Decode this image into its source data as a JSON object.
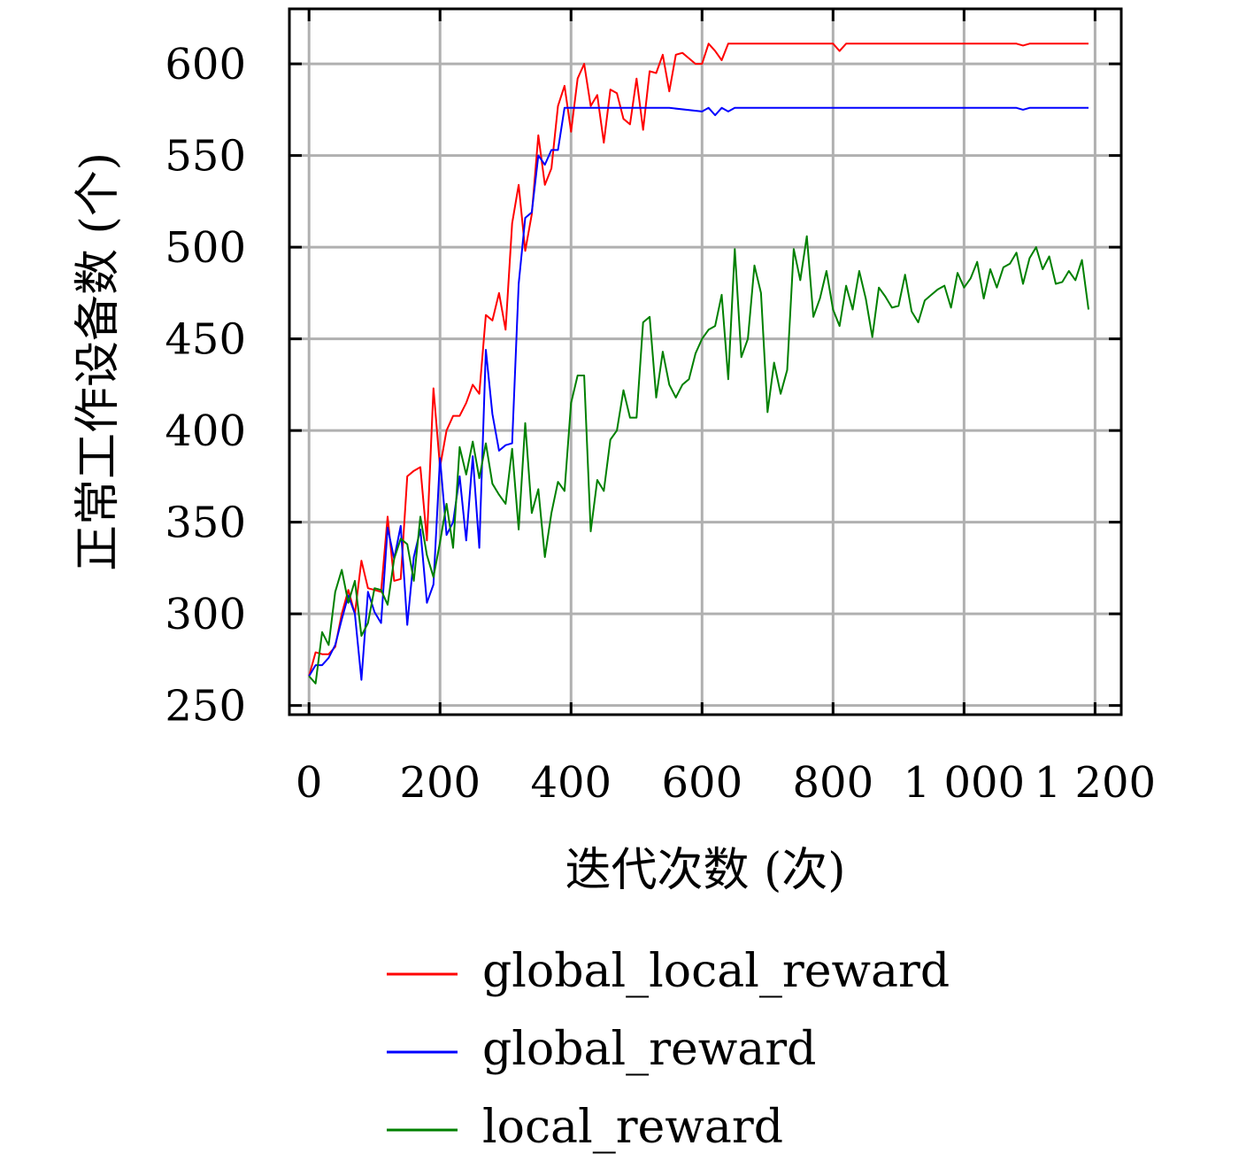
{
  "chart_data": {
    "type": "line",
    "title": "",
    "xlabel": "迭代次数 (次)",
    "ylabel": "正常工作设备数 (个)",
    "xlim": [
      -30,
      1240
    ],
    "ylim": [
      245,
      630
    ],
    "grid": true,
    "legend_position": "bottom",
    "x_ticks": [
      0,
      200,
      400,
      600,
      800,
      1000,
      1200
    ],
    "x_tick_labels": [
      "0",
      "200",
      "400",
      "600",
      "800",
      "1 000",
      "1 200"
    ],
    "y_ticks": [
      250,
      300,
      350,
      400,
      450,
      500,
      550,
      600
    ],
    "y_tick_labels": [
      "250",
      "300",
      "350",
      "400",
      "450",
      "500",
      "550",
      "600"
    ],
    "series": [
      {
        "name": "global_local_reward",
        "color": "#ff0000",
        "x": [
          0,
          10,
          20,
          30,
          40,
          50,
          60,
          70,
          80,
          90,
          100,
          110,
          120,
          130,
          140,
          150,
          160,
          170,
          180,
          190,
          200,
          210,
          220,
          230,
          240,
          250,
          260,
          270,
          280,
          290,
          300,
          310,
          320,
          330,
          340,
          350,
          360,
          370,
          380,
          390,
          400,
          410,
          420,
          430,
          440,
          450,
          460,
          470,
          480,
          490,
          500,
          510,
          520,
          530,
          540,
          550,
          560,
          570,
          580,
          590,
          600,
          610,
          620,
          630,
          640,
          650,
          700,
          750,
          800,
          810,
          820,
          850,
          900,
          950,
          1000,
          1050,
          1080,
          1090,
          1100,
          1150,
          1190
        ],
        "y": [
          266,
          279,
          278,
          278,
          282,
          300,
          313,
          300,
          329,
          314,
          313,
          312,
          353,
          318,
          319,
          375,
          378,
          380,
          340,
          423,
          380,
          400,
          408,
          408,
          415,
          425,
          420,
          463,
          460,
          475,
          455,
          513,
          534,
          498,
          518,
          561,
          534,
          543,
          577,
          588,
          563,
          592,
          600,
          577,
          583,
          557,
          586,
          584,
          570,
          567,
          592,
          564,
          596,
          595,
          605,
          585,
          605,
          606,
          603,
          600,
          600,
          611,
          607,
          602,
          611,
          611,
          611,
          611,
          611,
          607,
          611,
          611,
          611,
          611,
          611,
          611,
          611,
          610,
          611,
          611,
          611
        ]
      },
      {
        "name": "global_reward",
        "color": "#0000ff",
        "x": [
          0,
          10,
          20,
          30,
          40,
          50,
          60,
          70,
          80,
          90,
          100,
          110,
          120,
          130,
          140,
          150,
          160,
          170,
          180,
          190,
          200,
          210,
          220,
          230,
          240,
          250,
          260,
          270,
          280,
          290,
          300,
          310,
          320,
          330,
          340,
          350,
          360,
          370,
          380,
          390,
          400,
          450,
          500,
          550,
          600,
          610,
          620,
          630,
          640,
          650,
          700,
          750,
          800,
          850,
          900,
          950,
          1000,
          1050,
          1080,
          1090,
          1100,
          1150,
          1190
        ],
        "y": [
          266,
          272,
          272,
          276,
          283,
          297,
          310,
          300,
          264,
          312,
          301,
          295,
          347,
          330,
          348,
          294,
          331,
          346,
          306,
          316,
          385,
          343,
          350,
          375,
          340,
          386,
          336,
          444,
          409,
          389,
          392,
          393,
          480,
          516,
          519,
          550,
          545,
          553,
          553,
          576,
          576,
          576,
          576,
          576,
          574,
          576,
          572,
          576,
          574,
          576,
          576,
          576,
          576,
          576,
          576,
          576,
          576,
          576,
          576,
          575,
          576,
          576,
          576
        ]
      },
      {
        "name": "local_reward",
        "color": "#008000",
        "x": [
          0,
          10,
          20,
          30,
          40,
          50,
          60,
          70,
          80,
          90,
          100,
          110,
          120,
          130,
          140,
          150,
          160,
          170,
          180,
          190,
          200,
          210,
          220,
          230,
          240,
          250,
          260,
          270,
          280,
          290,
          300,
          310,
          320,
          330,
          340,
          350,
          360,
          370,
          380,
          390,
          400,
          410,
          420,
          430,
          440,
          450,
          460,
          470,
          480,
          490,
          500,
          510,
          520,
          530,
          540,
          550,
          560,
          570,
          580,
          590,
          600,
          610,
          620,
          630,
          640,
          650,
          660,
          670,
          680,
          690,
          700,
          710,
          720,
          730,
          740,
          750,
          760,
          770,
          780,
          790,
          800,
          810,
          820,
          830,
          840,
          850,
          860,
          870,
          880,
          890,
          900,
          910,
          920,
          930,
          940,
          950,
          960,
          970,
          980,
          990,
          1000,
          1010,
          1020,
          1030,
          1040,
          1050,
          1060,
          1070,
          1080,
          1090,
          1100,
          1110,
          1120,
          1130,
          1140,
          1150,
          1160,
          1170,
          1180,
          1190
        ],
        "y": [
          266,
          262,
          290,
          283,
          312,
          324,
          306,
          318,
          288,
          295,
          314,
          313,
          305,
          330,
          341,
          338,
          318,
          353,
          332,
          320,
          339,
          360,
          336,
          391,
          376,
          394,
          374,
          393,
          371,
          365,
          360,
          390,
          346,
          404,
          355,
          368,
          331,
          355,
          372,
          367,
          415,
          430,
          430,
          345,
          373,
          367,
          395,
          400,
          422,
          407,
          407,
          459,
          462,
          418,
          443,
          425,
          418,
          425,
          428,
          442,
          450,
          455,
          457,
          474,
          428,
          499,
          440,
          450,
          490,
          475,
          410,
          437,
          420,
          433,
          499,
          482,
          506,
          462,
          472,
          487,
          466,
          457,
          479,
          466,
          487,
          472,
          451,
          478,
          473,
          467,
          468,
          485,
          465,
          459,
          471,
          474,
          477,
          479,
          467,
          486,
          478,
          483,
          492,
          472,
          488,
          478,
          489,
          491,
          497,
          480,
          494,
          500,
          488,
          495,
          480,
          481,
          487,
          482,
          493,
          466
        ]
      }
    ]
  }
}
